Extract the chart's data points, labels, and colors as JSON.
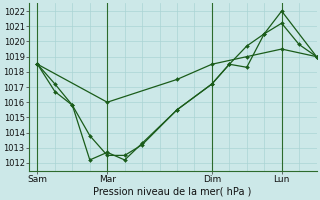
{
  "background_color": "#cce8e8",
  "grid_color": "#aad4d4",
  "line_color": "#1a5c1a",
  "xlabel": "Pression niveau de la mer( hPa )",
  "ylim": [
    1011.5,
    1022.5
  ],
  "yticks": [
    1012,
    1013,
    1014,
    1015,
    1016,
    1017,
    1018,
    1019,
    1020,
    1021,
    1022
  ],
  "xtick_labels": [
    "Sam",
    "Mar",
    "Dim",
    "Lun"
  ],
  "xtick_positions": [
    0,
    24,
    60,
    84
  ],
  "xlim": [
    -3,
    96
  ],
  "vline_positions": [
    0,
    24,
    60,
    84
  ],
  "line1_x": [
    0,
    6,
    12,
    18,
    24,
    30,
    36,
    48,
    60,
    66,
    72,
    78,
    84,
    90,
    96
  ],
  "line1_y": [
    1018.5,
    1017.2,
    1015.8,
    1013.8,
    1012.5,
    1012.5,
    1013.2,
    1015.5,
    1017.2,
    1018.5,
    1018.3,
    1020.5,
    1021.2,
    1019.8,
    1019.0
  ],
  "line2_x": [
    0,
    6,
    12,
    18,
    24,
    30,
    36,
    48,
    60,
    66,
    72,
    78,
    84,
    96
  ],
  "line2_y": [
    1018.5,
    1016.7,
    1015.8,
    1012.2,
    1012.7,
    1012.2,
    1013.3,
    1015.5,
    1017.2,
    1018.5,
    1019.7,
    1020.5,
    1022.0,
    1019.0
  ],
  "line3_x": [
    0,
    24,
    48,
    60,
    72,
    84,
    96
  ],
  "line3_y": [
    1018.5,
    1016.0,
    1017.5,
    1018.5,
    1019.0,
    1019.5,
    1019.0
  ],
  "figsize": [
    3.2,
    2.0
  ],
  "dpi": 100
}
